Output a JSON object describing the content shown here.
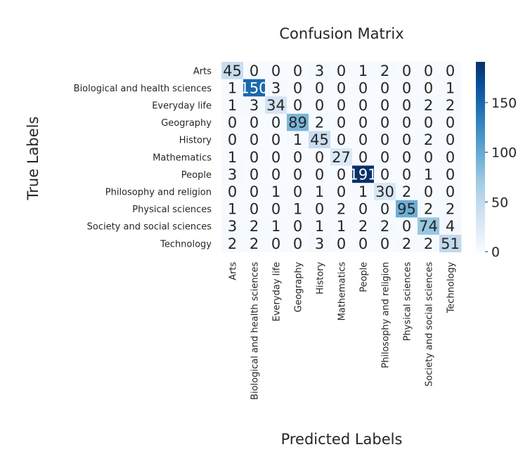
{
  "chart_data": {
    "type": "heatmap",
    "title": "Confusion Matrix",
    "xlabel": "Predicted Labels",
    "ylabel": "True Labels",
    "categories": [
      "Arts",
      "Biological and health sciences",
      "Everyday life",
      "Geography",
      "History",
      "Mathematics",
      "People",
      "Philosophy and religion",
      "Physical sciences",
      "Society and social sciences",
      "Technology"
    ],
    "matrix": [
      [
        45,
        0,
        0,
        0,
        3,
        0,
        1,
        2,
        0,
        0,
        0
      ],
      [
        1,
        150,
        3,
        0,
        0,
        0,
        0,
        0,
        0,
        0,
        1
      ],
      [
        1,
        3,
        34,
        0,
        0,
        0,
        0,
        0,
        0,
        2,
        2
      ],
      [
        0,
        0,
        0,
        89,
        2,
        0,
        0,
        0,
        0,
        0,
        0
      ],
      [
        0,
        0,
        0,
        1,
        45,
        0,
        0,
        0,
        0,
        2,
        0
      ],
      [
        1,
        0,
        0,
        0,
        0,
        27,
        0,
        0,
        0,
        0,
        0
      ],
      [
        3,
        0,
        0,
        0,
        0,
        0,
        191,
        0,
        0,
        1,
        0
      ],
      [
        0,
        0,
        1,
        0,
        1,
        0,
        1,
        30,
        2,
        0,
        0
      ],
      [
        1,
        0,
        0,
        1,
        0,
        2,
        0,
        0,
        95,
        2,
        2
      ],
      [
        3,
        2,
        1,
        0,
        1,
        1,
        2,
        2,
        0,
        74,
        4
      ],
      [
        2,
        2,
        0,
        0,
        3,
        0,
        0,
        0,
        2,
        2,
        51
      ]
    ],
    "colormap": "Blues",
    "vmin": 0,
    "vmax": 191,
    "colorbar_ticks": [
      0,
      50,
      100,
      150
    ],
    "grid": false,
    "colors": {
      "low": "#f7fbff",
      "high": "#08306b"
    }
  }
}
